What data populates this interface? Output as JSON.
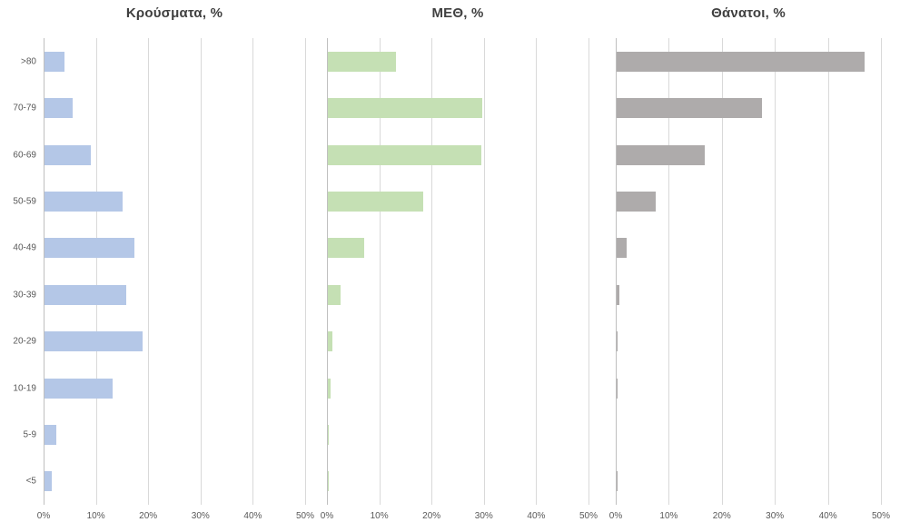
{
  "figure": {
    "background": "#ffffff",
    "colors": {
      "gridline": "#d9d9d9",
      "zero_axis": "#bfbfbf",
      "tick_text": "#595959",
      "title_text": "#404040"
    }
  },
  "chart_data": [
    {
      "type": "bar",
      "orientation": "horizontal",
      "title": "Κρούσματα, %",
      "categories": [
        ">80",
        "70-79",
        "60-69",
        "50-59",
        "40-49",
        "30-39",
        "20-29",
        "10-19",
        "5-9",
        "<5"
      ],
      "values": [
        3.9,
        5.4,
        8.8,
        14.9,
        17.2,
        15.6,
        18.7,
        13.0,
        2.2,
        1.4
      ],
      "bar_color": "#b4c7e7",
      "xlim": [
        0,
        50
      ],
      "x_tick_values": [
        0,
        10,
        20,
        30,
        40,
        50
      ],
      "x_ticks": [
        "0%",
        "10%",
        "20%",
        "30%",
        "40%",
        "50%"
      ],
      "grid": true,
      "legend": "none",
      "show_category_labels": true
    },
    {
      "type": "bar",
      "orientation": "horizontal",
      "title": "ΜΕΘ, %",
      "categories": [
        ">80",
        "70-79",
        "60-69",
        "50-59",
        "40-49",
        "30-39",
        "20-29",
        "10-19",
        "5-9",
        "<5"
      ],
      "values": [
        13.1,
        29.5,
        29.4,
        18.3,
        6.9,
        2.4,
        0.9,
        0.5,
        0.1,
        0.1
      ],
      "bar_color": "#c5e0b4",
      "xlim": [
        0,
        50
      ],
      "x_tick_values": [
        0,
        10,
        20,
        30,
        40,
        50
      ],
      "x_ticks": [
        "0%",
        "10%",
        "20%",
        "30%",
        "40%",
        "50%"
      ],
      "grid": true,
      "legend": "none",
      "show_category_labels": false
    },
    {
      "type": "bar",
      "orientation": "horizontal",
      "title": "Θάνατοι, %",
      "categories": [
        ">80",
        "70-79",
        "60-69",
        "50-59",
        "40-49",
        "30-39",
        "20-29",
        "10-19",
        "5-9",
        "<5"
      ],
      "values": [
        46.7,
        27.4,
        16.6,
        7.3,
        1.9,
        0.5,
        0.2,
        0.2,
        0,
        0.2
      ],
      "bar_color": "#aeabab",
      "xlim": [
        0,
        50
      ],
      "x_tick_values": [
        0,
        10,
        20,
        30,
        40,
        50
      ],
      "x_ticks": [
        "0%",
        "10%",
        "20%",
        "30%",
        "40%",
        "50%"
      ],
      "grid": true,
      "legend": "none",
      "show_category_labels": false
    }
  ]
}
